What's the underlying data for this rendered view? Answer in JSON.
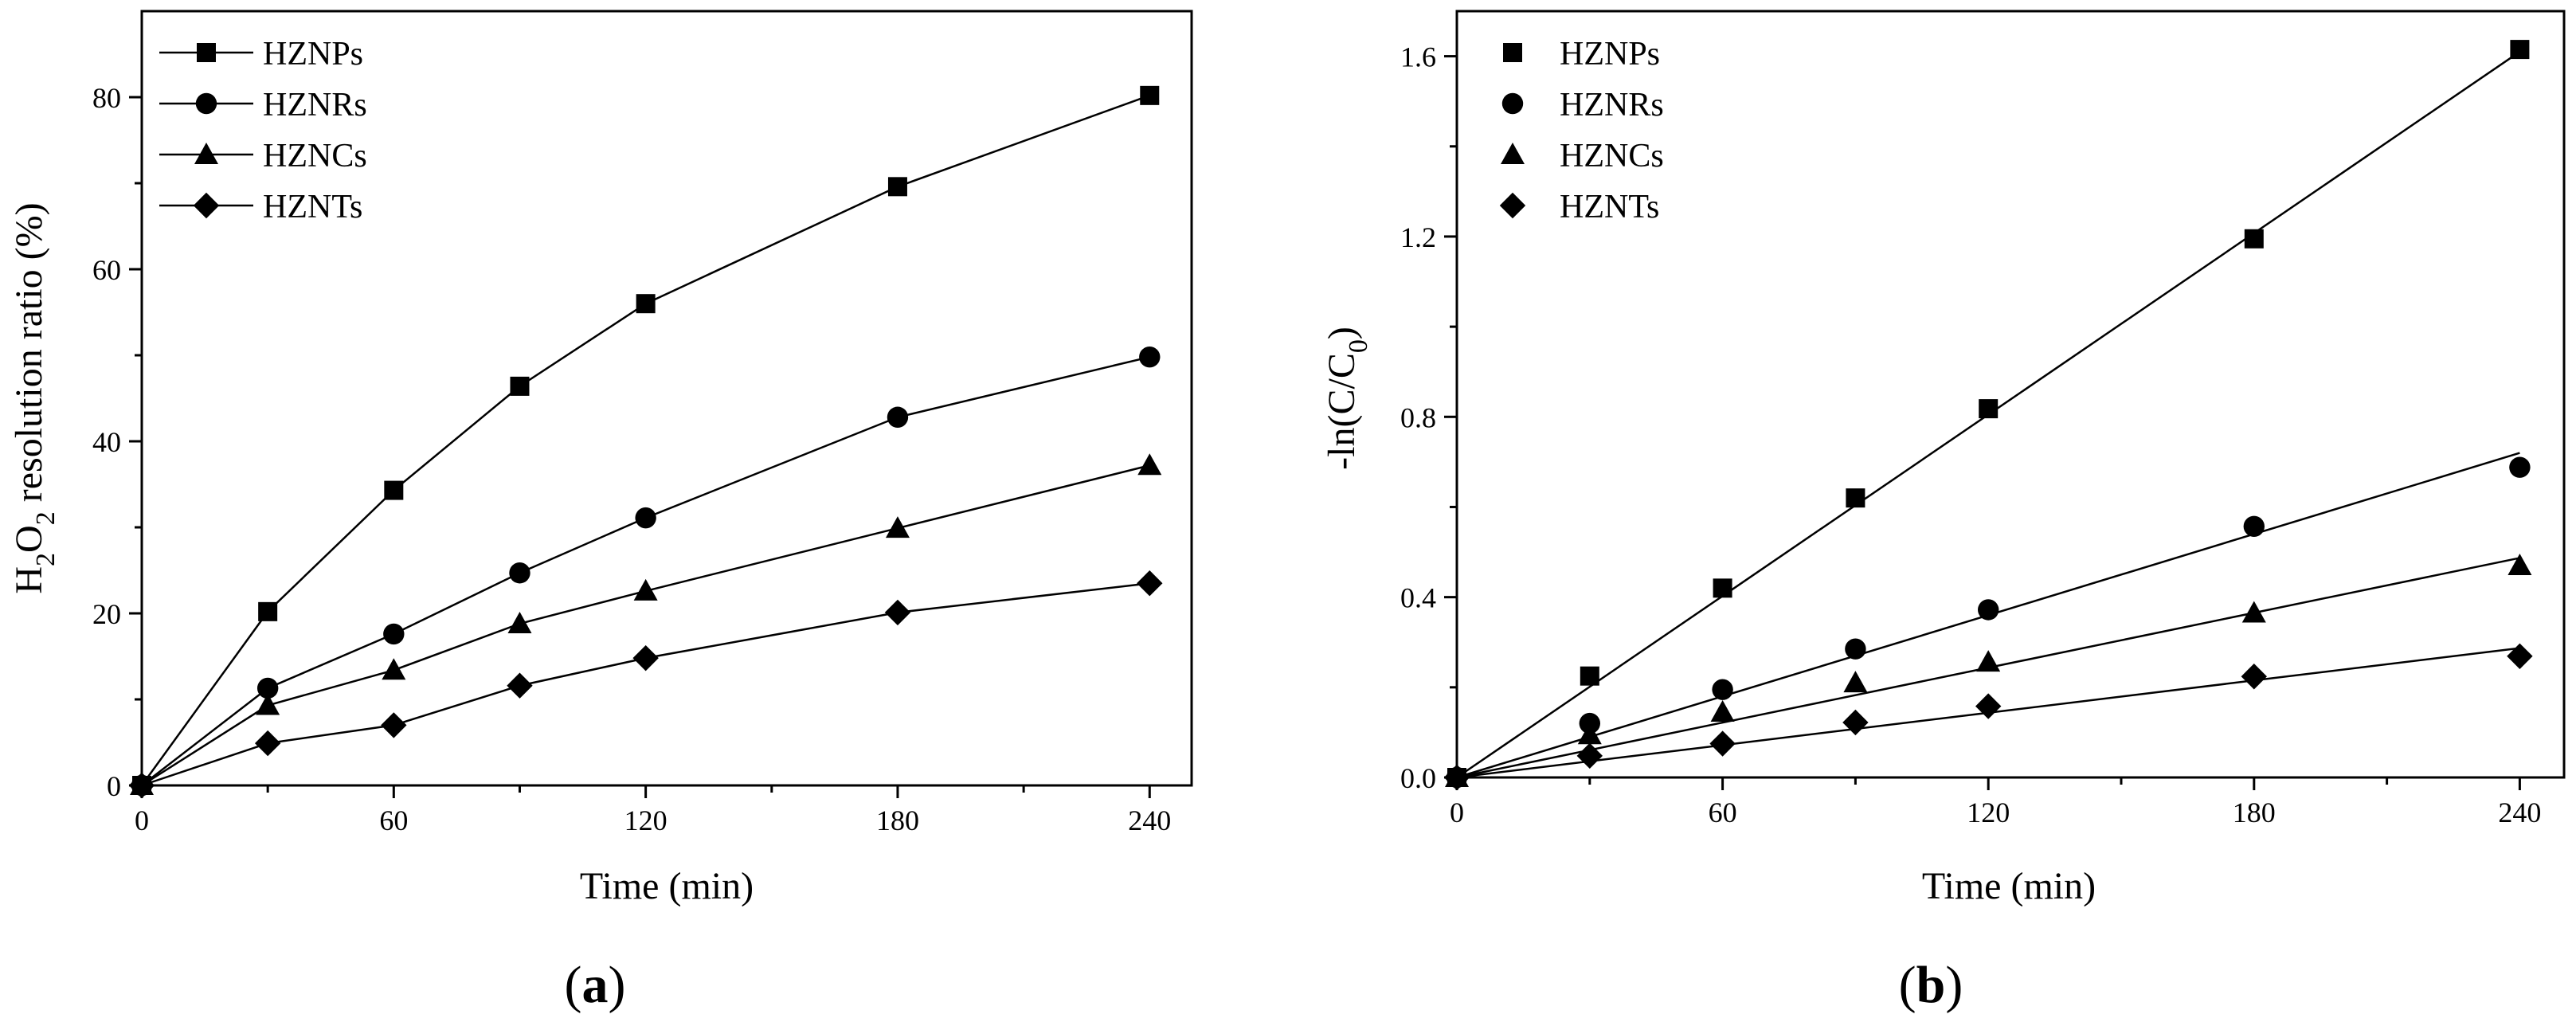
{
  "chart_data": [
    {
      "type": "line",
      "panel_label": "a",
      "xlabel": "Time (min)",
      "ylabel": {
        "main": "H",
        "sub1": "2",
        "mid": "O",
        "sub2": "2",
        "rest": " resolution ratio (%)"
      },
      "xlim": [
        0,
        250
      ],
      "ylim": [
        0,
        90
      ],
      "xticks": [
        0,
        60,
        120,
        180,
        240
      ],
      "yticks": [
        0,
        20,
        40,
        60,
        80
      ],
      "legend_position": "top-left",
      "x": [
        0,
        30,
        60,
        90,
        120,
        180,
        240
      ],
      "series": [
        {
          "name": "HZNPs",
          "marker": "square",
          "values": [
            0,
            20.2,
            34.3,
            46.4,
            56.0,
            69.6,
            80.2
          ]
        },
        {
          "name": "HZNRs",
          "marker": "circle",
          "values": [
            0,
            11.3,
            17.6,
            24.7,
            31.1,
            42.8,
            49.8
          ]
        },
        {
          "name": "HZNCs",
          "marker": "triangle",
          "values": [
            0,
            9.3,
            13.4,
            18.8,
            22.6,
            29.9,
            37.2
          ]
        },
        {
          "name": "HZNTs",
          "marker": "diamond",
          "values": [
            0,
            4.9,
            7.0,
            11.6,
            14.8,
            20.1,
            23.5
          ]
        }
      ]
    },
    {
      "type": "scatter",
      "panel_label": "b",
      "xlabel": "Time (min)",
      "ylabel": {
        "main": "-ln(C/C",
        "sub": "0",
        "rest": ")"
      },
      "xlim": [
        0,
        250
      ],
      "ylim": [
        0,
        1.7
      ],
      "xticks": [
        0,
        60,
        120,
        180,
        240
      ],
      "yticks": [
        0.0,
        0.4,
        0.8,
        1.2,
        1.6
      ],
      "ytick_labels": [
        "0.0",
        "0.4",
        "0.8",
        "1.2",
        "1.6"
      ],
      "legend_position": "top-left",
      "x": [
        0,
        30,
        60,
        90,
        120,
        180,
        240
      ],
      "series": [
        {
          "name": "HZNPs",
          "marker": "square",
          "values": [
            0,
            0.225,
            0.42,
            0.62,
            0.818,
            1.195,
            1.615
          ],
          "fit_end": 1.61
        },
        {
          "name": "HZNRs",
          "marker": "circle",
          "values": [
            0,
            0.12,
            0.195,
            0.285,
            0.372,
            0.557,
            0.688
          ],
          "fit_end": 0.72
        },
        {
          "name": "HZNCs",
          "marker": "triangle",
          "values": [
            0,
            0.095,
            0.145,
            0.21,
            0.256,
            0.365,
            0.47
          ],
          "fit_end": 0.487
        },
        {
          "name": "HZNTs",
          "marker": "diamond",
          "values": [
            0,
            0.048,
            0.075,
            0.122,
            0.158,
            0.224,
            0.269
          ],
          "fit_end": 0.287
        }
      ]
    }
  ]
}
